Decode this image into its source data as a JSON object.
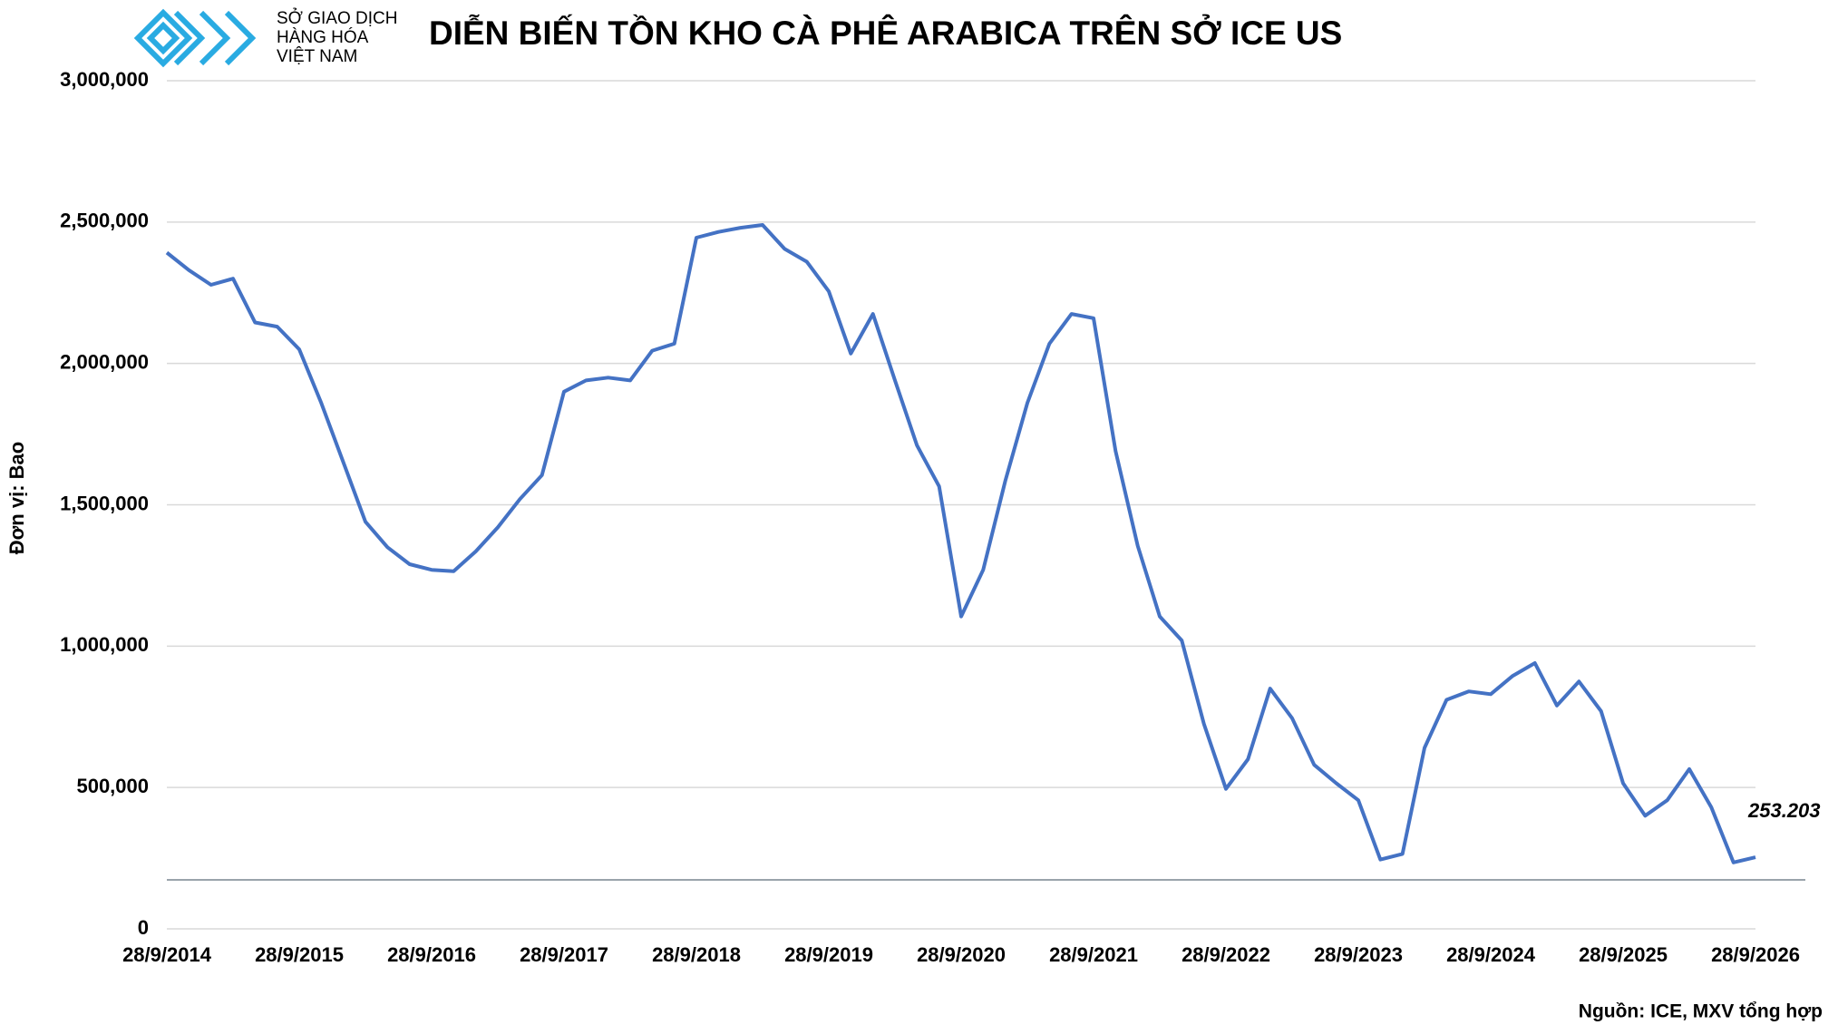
{
  "logo": {
    "lines": [
      "SỞ GIAO DỊCH",
      "HÀNG HÓA",
      "VIỆT NAM"
    ]
  },
  "chart_data": {
    "type": "line",
    "title": "DIỄN BIẾN TỒN KHO CÀ PHÊ ARABICA TRÊN SỞ ICE US",
    "y_label": "Đơn vị: Bao",
    "source": "Nguồn: ICE, MXV tổng hợp",
    "annotation": "253.203",
    "categories": [
      "28/9/2014",
      null,
      null,
      null,
      null,
      null,
      "28/9/2015",
      null,
      null,
      null,
      null,
      null,
      "28/9/2016",
      null,
      null,
      null,
      null,
      null,
      "28/9/2017",
      null,
      null,
      null,
      null,
      null,
      "28/9/2018",
      null,
      null,
      null,
      null,
      null,
      "28/9/2019",
      null,
      null,
      null,
      null,
      null,
      "28/9/2020",
      null,
      null,
      null,
      null,
      null,
      "28/9/2021",
      null,
      null,
      null,
      null,
      null,
      "28/9/2022",
      null,
      null,
      null,
      null,
      null,
      "28/9/2023",
      null,
      null,
      null,
      null,
      null,
      "28/9/2024",
      null,
      null,
      null,
      null,
      null,
      "28/9/2025",
      null,
      null,
      null,
      null,
      null,
      "28/9/2026"
    ],
    "series": [
      {
        "name": "Tồn kho",
        "color": "#4472c4",
        "values": [
          2392000,
          2330000,
          2278000,
          2300000,
          2145000,
          2130000,
          2050000,
          1860000,
          1650000,
          1440000,
          1350000,
          1290000,
          1270000,
          1265000,
          1335000,
          1420000,
          1520000,
          1605000,
          1900000,
          1940000,
          1950000,
          1940000,
          2045000,
          2070000,
          2445000,
          2465000,
          2480000,
          2490000,
          2405000,
          2360000,
          2255000,
          2035000,
          2175000,
          1940000,
          1710000,
          1565000,
          1105000,
          1270000,
          1585000,
          1860000,
          2070000,
          2175000,
          2160000,
          1690000,
          1355000,
          1105000,
          1020000,
          725000,
          495000,
          600000,
          850000,
          745000,
          580000,
          515000,
          455000,
          245000,
          265000,
          640000,
          810000,
          840000,
          830000,
          895000,
          940000,
          790000,
          875000,
          770000,
          515000,
          400000,
          455000,
          565000,
          430000,
          235000,
          253203
        ]
      }
    ],
    "ylim": [
      0,
      3000000
    ],
    "yticks": [
      0,
      {
        "value": 500000,
        "label": "500,000"
      },
      {
        "value": 1000000,
        "label": "1,000,000"
      },
      {
        "value": 1500000,
        "label": "1,500,000"
      },
      {
        "value": 2000000,
        "label": "2,000,000"
      },
      {
        "value": 2500000,
        "label": "2,500,000"
      },
      {
        "value": 3000000,
        "label": "3,000,000"
      }
    ],
    "grid": true
  }
}
